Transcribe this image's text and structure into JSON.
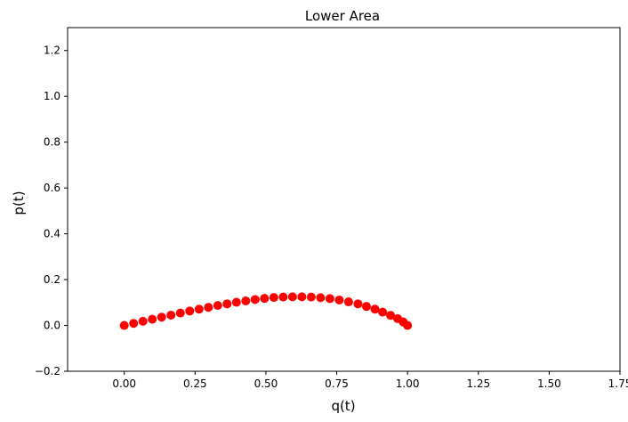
{
  "chart_data": {
    "type": "scatter",
    "title": "Lower Area",
    "xlabel": "q(t)",
    "ylabel": "p(t)",
    "xlim": [
      -0.2,
      1.75
    ],
    "ylim": [
      -0.2,
      1.3
    ],
    "xticks": [
      "0.00",
      "0.25",
      "0.50",
      "0.75",
      "1.00",
      "1.25",
      "1.50",
      "1.75"
    ],
    "yticks": [
      "−0.2",
      "0.0",
      "0.2",
      "0.4",
      "0.6",
      "0.8",
      "1.0",
      "1.2"
    ],
    "grid": false,
    "color": "#ff0000",
    "series": [
      {
        "x": [
          0.0,
          0.033,
          0.066,
          0.099,
          0.132,
          0.165,
          0.198,
          0.231,
          0.264,
          0.297,
          0.33,
          0.363,
          0.396,
          0.429,
          0.462,
          0.495,
          0.528,
          0.561,
          0.594,
          0.627,
          0.66,
          0.693,
          0.726,
          0.759,
          0.792,
          0.825,
          0.855,
          0.885,
          0.912,
          0.94,
          0.965,
          0.985,
          1.0
        ],
        "y": [
          0.0,
          0.009,
          0.018,
          0.027,
          0.036,
          0.045,
          0.054,
          0.063,
          0.071,
          0.079,
          0.087,
          0.094,
          0.101,
          0.107,
          0.113,
          0.118,
          0.122,
          0.124,
          0.125,
          0.125,
          0.124,
          0.121,
          0.117,
          0.111,
          0.103,
          0.094,
          0.083,
          0.071,
          0.058,
          0.044,
          0.03,
          0.015,
          0.0
        ]
      }
    ]
  }
}
